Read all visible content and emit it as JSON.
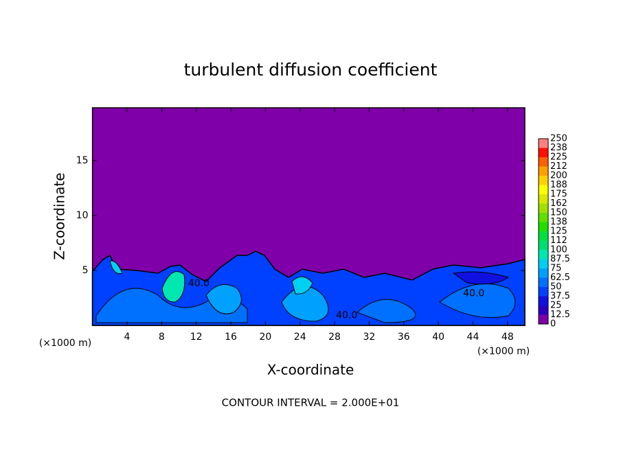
{
  "chart_data": {
    "type": "contour",
    "title": "turbulent diffusion coefficient",
    "x_label": "X-coordinate",
    "y_label": "Z-coordinate",
    "x_unit_left": "(×1000 m)",
    "x_unit_right": "(×1000 m)",
    "footer": "CONTOUR INTERVAL = 2.000E+01",
    "xlim": [
      0,
      50
    ],
    "ylim": [
      0,
      19.8
    ],
    "xticks": [
      4,
      8,
      12,
      16,
      20,
      24,
      28,
      32,
      36,
      40,
      44,
      48
    ],
    "yticks": [
      5,
      10,
      15
    ],
    "levels": [
      0,
      12.5,
      25,
      37.5,
      50,
      62.5,
      75,
      87.5,
      100,
      112,
      125,
      138,
      150,
      162,
      175,
      188,
      200,
      212,
      225,
      238,
      250
    ],
    "colors": [
      "#7f00a8",
      "#2a00c0",
      "#1010e0",
      "#0040ff",
      "#0070ff",
      "#00a0ff",
      "#00d0f0",
      "#00e8b0",
      "#00e070",
      "#00e040",
      "#20e000",
      "#60e000",
      "#a0e000",
      "#d8e800",
      "#ffff00",
      "#ffd000",
      "#ffa000",
      "#ff6000",
      "#ff1000",
      "#ff8080"
    ],
    "contour_labels": [
      {
        "text": "40.0",
        "x": 12.3,
        "y": 3.8
      },
      {
        "text": "40.0",
        "x": 29.4,
        "y": 0.9
      },
      {
        "text": "40.0",
        "x": 44.1,
        "y": 2.9
      }
    ]
  }
}
